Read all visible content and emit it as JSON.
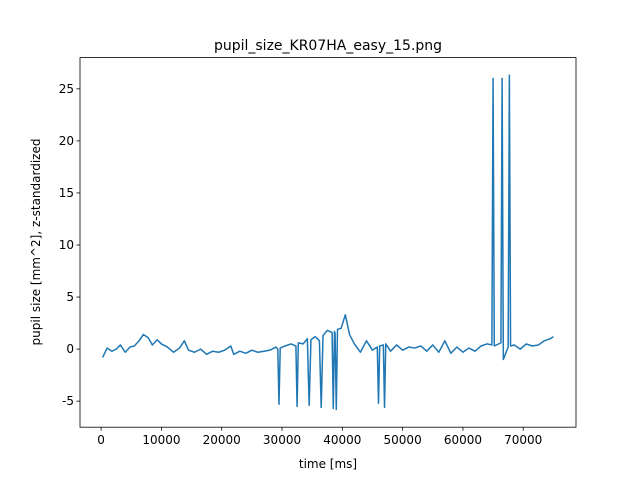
{
  "chart_data": {
    "type": "line",
    "title": "pupil_size_KR07HA_easy_15.png",
    "x_label": "time [ms]",
    "y_label": "pupil size [mm^2], z-standardized",
    "x": [
      250,
      1000,
      1800,
      2500,
      3200,
      4000,
      4800,
      5500,
      6300,
      7000,
      7800,
      8500,
      9300,
      10000,
      11000,
      12000,
      13000,
      13800,
      14500,
      15500,
      16500,
      17500,
      18500,
      19500,
      20500,
      21500,
      22000,
      23000,
      24000,
      25000,
      26000,
      27000,
      28000,
      29000,
      29300,
      29500,
      29700,
      30500,
      31500,
      32300,
      32500,
      32700,
      33500,
      34200,
      34500,
      34800,
      35500,
      36200,
      36500,
      36800,
      37500,
      38300,
      38500,
      38700,
      38800,
      39000,
      39200,
      39800,
      40500,
      41200,
      42000,
      43000,
      44000,
      45000,
      45800,
      46000,
      46200,
      46800,
      47000,
      47200,
      48000,
      49000,
      50000,
      51000,
      52000,
      53000,
      54000,
      55000,
      56000,
      57000,
      58000,
      59000,
      60000,
      61000,
      62000,
      63000,
      64000,
      64800,
      65000,
      65200,
      66300,
      66500,
      66700,
      67500,
      67700,
      67900,
      68500,
      69500,
      70500,
      71500,
      72500,
      73500,
      74500,
      75000
    ],
    "series": [
      {
        "name": "pupil size",
        "color": "#1f77b4",
        "values": [
          -0.8,
          0.1,
          -0.2,
          0.0,
          0.4,
          -0.3,
          0.2,
          0.3,
          0.8,
          1.4,
          1.1,
          0.4,
          0.9,
          0.5,
          0.2,
          -0.3,
          0.1,
          0.8,
          -0.1,
          -0.3,
          0.0,
          -0.5,
          -0.2,
          -0.3,
          -0.1,
          0.3,
          -0.5,
          -0.2,
          -0.4,
          -0.1,
          -0.3,
          -0.2,
          -0.1,
          0.2,
          0.0,
          -5.3,
          0.1,
          0.3,
          0.5,
          0.3,
          -5.5,
          0.6,
          0.5,
          1.0,
          -5.4,
          0.9,
          1.2,
          0.8,
          -5.6,
          1.3,
          1.8,
          1.6,
          -5.7,
          1.7,
          1.5,
          -5.8,
          1.9,
          2.0,
          3.3,
          1.4,
          0.5,
          -0.3,
          0.8,
          -0.1,
          0.2,
          -5.2,
          0.3,
          0.4,
          -5.6,
          0.5,
          -0.2,
          0.4,
          -0.1,
          0.2,
          0.1,
          0.3,
          -0.2,
          0.4,
          -0.3,
          0.8,
          -0.4,
          0.2,
          -0.3,
          0.1,
          -0.2,
          0.3,
          0.5,
          0.4,
          26.0,
          0.3,
          0.6,
          26.0,
          -1.0,
          0.2,
          26.3,
          0.3,
          0.4,
          0.0,
          0.5,
          0.3,
          0.4,
          0.8,
          1.0,
          1.2
        ]
      }
    ],
    "xlim": [
      -3500,
      78750
    ],
    "ylim": [
      -7.5,
      28
    ],
    "xticks": [
      0,
      10000,
      20000,
      30000,
      40000,
      50000,
      60000,
      70000
    ],
    "yticks": [
      -5,
      0,
      5,
      10,
      15,
      20,
      25
    ]
  }
}
